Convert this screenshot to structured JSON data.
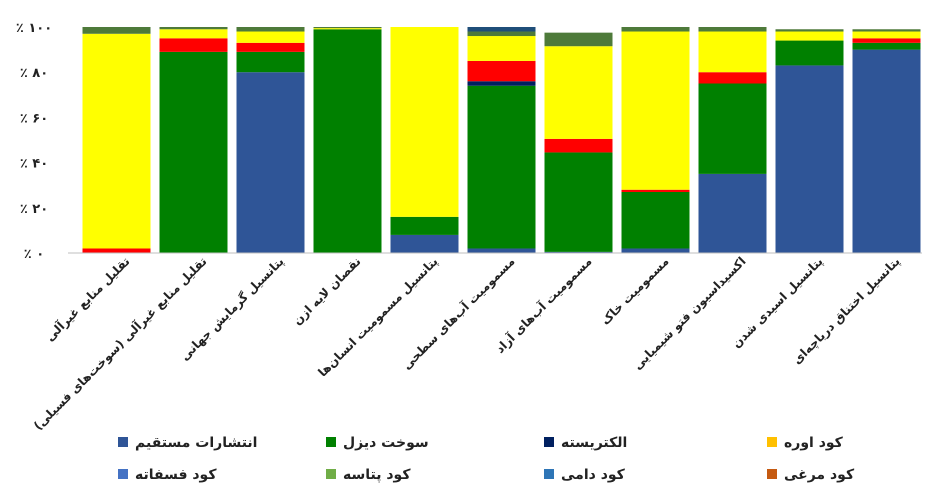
{
  "chart_data": {
    "type": "bar",
    "stacked": true,
    "orientation": "vertical",
    "ylim": [
      0,
      100
    ],
    "y_ticks": [
      "٪ ۰",
      "٪ ۲۰",
      "٪ ۴۰",
      "٪ ۶۰",
      "٪ ۸۰",
      "٪ ۱۰۰"
    ],
    "grid": false,
    "legend_position": "bottom",
    "categories": [
      "تقلیل منابع غیرآلی",
      "تقلیل منابع غیرآلی (سوخت‌های فسیلی)",
      "پتانسیل گرمایش جهانی",
      "نقصان لایه ازن",
      "پتانسیل مسمومیت انسان‌ها",
      "مسمومیت آب‌های سطحی",
      "مسمومیت آب‌های آزاد",
      "مسمومیت خاک",
      "اکسیداسیون فتو شیمیایی",
      "پتانسیل اسیدی شدن",
      "پتانسیل اختناق دریاچه‌ای"
    ],
    "series": [
      {
        "name": "انتشارات مستقیم",
        "color": "#2F5597",
        "values": [
          0,
          0,
          80,
          0,
          8,
          2,
          0.5,
          2,
          35,
          83,
          90
        ]
      },
      {
        "name": "سوخت دیزل",
        "color": "#008000",
        "values": [
          0,
          89,
          9,
          99,
          8,
          72,
          44,
          25,
          40,
          11,
          3
        ]
      },
      {
        "name": "الکتریسته",
        "color": "#002060",
        "values": [
          0,
          0,
          0,
          0,
          0,
          2,
          0,
          0,
          0,
          0,
          0
        ]
      },
      {
        "name": "کود اوره",
        "color": "#FF0000",
        "values": [
          2,
          6,
          4,
          0,
          0,
          9,
          6,
          1,
          5,
          0,
          2
        ]
      },
      {
        "name": "کود فسفاته",
        "color": "#FFFF00",
        "values": [
          95,
          4,
          5,
          0.5,
          84,
          11,
          41,
          70,
          18,
          4,
          3
        ]
      },
      {
        "name": "کود پتاسه",
        "color": "#4E7A3A",
        "values": [
          3,
          1,
          2,
          0.5,
          0,
          2,
          6,
          2,
          2,
          1,
          1
        ]
      },
      {
        "name": "کود دامی",
        "color": "#1F4E79",
        "values": [
          0,
          0,
          0,
          0,
          0,
          2,
          0,
          0,
          0,
          0,
          0
        ]
      },
      {
        "name": "کود مرغی",
        "color": "#A0522D",
        "values": [
          0,
          0,
          0,
          0,
          0,
          0,
          0,
          0,
          0,
          0,
          0
        ]
      }
    ],
    "legend": [
      {
        "name": "انتشارات مستقیم",
        "color": "#2F5597"
      },
      {
        "name": "سوخت دیزل",
        "color": "#008000"
      },
      {
        "name": "الکتریسته",
        "color": "#002060"
      },
      {
        "name": "کود اوره",
        "color": "#FFC000"
      },
      {
        "name": "کود فسفاته",
        "color": "#4472C4"
      },
      {
        "name": "کود پتاسه",
        "color": "#70AD47"
      },
      {
        "name": "کود دامی",
        "color": "#2E75B6"
      },
      {
        "name": "کود مرغی",
        "color": "#C55A11"
      }
    ]
  }
}
